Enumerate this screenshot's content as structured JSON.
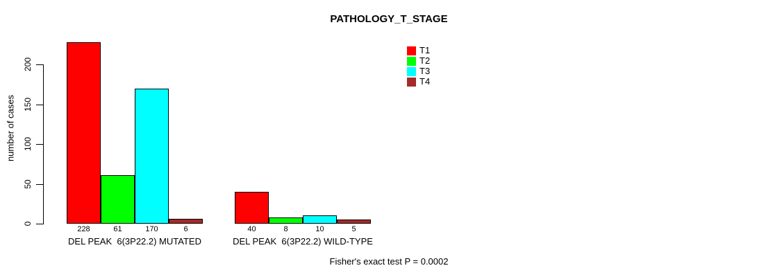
{
  "title": "PATHOLOGY_T_STAGE",
  "y_axis": {
    "label": "number of cases"
  },
  "footnote": "Fisher's exact test P = 0.0002",
  "chart_data": {
    "type": "bar",
    "title": "PATHOLOGY_T_STAGE",
    "xlabel": "",
    "ylabel": "number of cases",
    "ylim": [
      0,
      235
    ],
    "yticks": [
      0,
      50,
      100,
      150,
      200
    ],
    "grid": false,
    "legend_position": "top-right",
    "bar_value_labels": true,
    "categories": [
      "DEL PEAK  6(3P22.2) MUTATED",
      "DEL PEAK  6(3P22.2) WILD-TYPE"
    ],
    "series": [
      {
        "name": "T1",
        "color": "#ff0000",
        "values": [
          228,
          40
        ]
      },
      {
        "name": "T2",
        "color": "#00ff00",
        "values": [
          61,
          8
        ]
      },
      {
        "name": "T3",
        "color": "#00ffff",
        "values": [
          170,
          10
        ]
      },
      {
        "name": "T4",
        "color": "#a52a2a",
        "values": [
          6,
          5
        ]
      }
    ],
    "annotation": "Fisher's exact test P = 0.0002"
  }
}
